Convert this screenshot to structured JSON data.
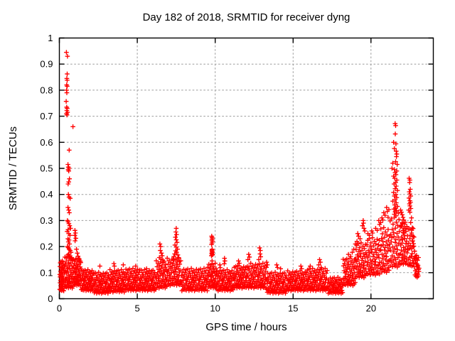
{
  "chart_data": {
    "type": "scatter",
    "title": "Day 182 of 2018, SRMTID for receiver dyng",
    "xlabel": "GPS time / hours",
    "ylabel": "SRMTID / TECUs",
    "xlim": [
      0,
      24
    ],
    "ylim": [
      0,
      1
    ],
    "x_ticks": [
      0,
      5,
      10,
      15,
      20
    ],
    "x_tick_labels": [
      "0",
      "5",
      "10",
      "15",
      "20"
    ],
    "y_ticks": [
      0,
      0.1,
      0.2,
      0.3,
      0.4,
      0.5,
      0.6,
      0.7,
      0.8,
      0.9,
      1
    ],
    "y_tick_labels": [
      "0",
      "0.1",
      "0.2",
      "0.3",
      "0.4",
      "0.5",
      "0.6",
      "0.7",
      "0.8",
      "0.9",
      "1"
    ],
    "grid": true,
    "legend": "none",
    "marker": "plus",
    "marker_color": "#ff0000",
    "grid_color": "#9c9c9c",
    "border_color": "#000000",
    "background": "#ffffff",
    "noise": [
      0.62,
      0.11,
      0.83,
      0.37,
      0.55,
      0.92,
      0.08,
      0.44,
      0.71,
      0.26,
      0.59,
      0.95,
      0.18,
      0.66,
      0.33,
      0.79,
      0.04,
      0.5,
      0.87,
      0.22,
      0.41,
      0.74,
      0.13,
      0.68,
      0.3,
      0.97,
      0.47,
      0.07,
      0.58,
      0.81,
      0.25,
      0.63,
      0.16,
      0.9,
      0.38,
      0.52,
      0.73,
      0.02,
      0.45,
      0.85,
      0.29,
      0.67,
      0.12,
      0.56,
      0.94,
      0.35,
      0.76,
      0.2
    ],
    "baseline_segments_format": "[x_start, x_end, count, y_min, y_max]",
    "baseline_segments": [
      [
        0.02,
        0.3,
        40,
        0.03,
        0.15
      ],
      [
        0.3,
        0.9,
        52,
        0.04,
        0.17
      ],
      [
        0.9,
        1.4,
        46,
        0.05,
        0.16
      ],
      [
        1.4,
        2.2,
        58,
        0.03,
        0.115
      ],
      [
        2.2,
        3.2,
        66,
        0.02,
        0.105
      ],
      [
        3.2,
        4.2,
        66,
        0.025,
        0.115
      ],
      [
        4.2,
        5.2,
        64,
        0.03,
        0.12
      ],
      [
        5.2,
        6.2,
        64,
        0.03,
        0.115
      ],
      [
        6.2,
        6.9,
        48,
        0.04,
        0.15
      ],
      [
        6.9,
        7.8,
        58,
        0.05,
        0.16
      ],
      [
        7.8,
        9.5,
        100,
        0.03,
        0.12
      ],
      [
        9.5,
        10.1,
        42,
        0.04,
        0.14
      ],
      [
        10.1,
        11.2,
        68,
        0.03,
        0.115
      ],
      [
        11.2,
        12.1,
        58,
        0.04,
        0.13
      ],
      [
        12.1,
        13.3,
        74,
        0.04,
        0.14
      ],
      [
        13.3,
        14.6,
        78,
        0.02,
        0.105
      ],
      [
        14.6,
        15.8,
        72,
        0.03,
        0.11
      ],
      [
        15.8,
        17.2,
        84,
        0.03,
        0.12
      ],
      [
        17.2,
        18.2,
        58,
        0.02,
        0.085
      ],
      [
        18.2,
        19.0,
        52,
        0.05,
        0.16
      ],
      [
        19.0,
        19.7,
        48,
        0.08,
        0.22
      ],
      [
        19.7,
        20.6,
        58,
        0.09,
        0.24
      ],
      [
        20.6,
        21.2,
        42,
        0.1,
        0.28
      ],
      [
        21.2,
        21.9,
        48,
        0.12,
        0.32
      ],
      [
        21.9,
        22.4,
        36,
        0.13,
        0.3
      ],
      [
        22.4,
        22.8,
        26,
        0.12,
        0.28
      ],
      [
        22.8,
        23.1,
        18,
        0.08,
        0.17
      ]
    ],
    "points": [
      [
        0.45,
        0.945
      ],
      [
        0.52,
        0.93
      ],
      [
        0.5,
        0.862
      ],
      [
        0.48,
        0.845
      ],
      [
        0.5,
        0.838
      ],
      [
        0.47,
        0.82
      ],
      [
        0.5,
        0.815
      ],
      [
        0.46,
        0.8
      ],
      [
        0.48,
        0.79
      ],
      [
        0.44,
        0.757
      ],
      [
        0.47,
        0.735
      ],
      [
        0.5,
        0.73
      ],
      [
        0.48,
        0.722
      ],
      [
        0.52,
        0.715
      ],
      [
        0.46,
        0.71
      ],
      [
        0.49,
        0.705
      ],
      [
        0.87,
        0.66
      ],
      [
        0.63,
        0.57
      ],
      [
        0.55,
        0.515
      ],
      [
        0.58,
        0.505
      ],
      [
        0.62,
        0.5
      ],
      [
        0.57,
        0.495
      ],
      [
        0.6,
        0.49
      ],
      [
        0.65,
        0.46
      ],
      [
        0.6,
        0.448
      ],
      [
        0.56,
        0.44
      ],
      [
        0.58,
        0.4
      ],
      [
        0.62,
        0.39
      ],
      [
        0.7,
        0.385
      ],
      [
        0.55,
        0.35
      ],
      [
        0.6,
        0.34
      ],
      [
        0.64,
        0.33
      ],
      [
        0.52,
        0.3
      ],
      [
        0.56,
        0.295
      ],
      [
        0.61,
        0.288
      ],
      [
        0.66,
        0.28
      ],
      [
        0.72,
        0.27
      ],
      [
        0.56,
        0.265
      ],
      [
        0.5,
        0.258
      ],
      [
        0.6,
        0.25
      ],
      [
        0.68,
        0.243
      ],
      [
        0.55,
        0.23
      ],
      [
        0.62,
        0.225
      ],
      [
        0.58,
        0.218
      ],
      [
        0.65,
        0.21
      ],
      [
        0.52,
        0.2
      ],
      [
        0.57,
        0.196
      ],
      [
        0.63,
        0.19
      ],
      [
        0.7,
        0.185
      ],
      [
        0.75,
        0.178
      ],
      [
        0.6,
        0.172
      ],
      [
        0.55,
        0.168
      ],
      [
        0.67,
        0.163
      ],
      [
        0.73,
        0.158
      ],
      [
        0.8,
        0.152
      ],
      [
        0.85,
        0.148
      ],
      [
        1.0,
        0.262
      ],
      [
        1.03,
        0.252
      ],
      [
        0.99,
        0.243
      ],
      [
        1.06,
        0.232
      ],
      [
        1.01,
        0.222
      ],
      [
        1.1,
        0.19
      ],
      [
        1.15,
        0.175
      ],
      [
        1.2,
        0.163
      ],
      [
        1.28,
        0.152
      ],
      [
        1.35,
        0.143
      ],
      [
        2.6,
        0.125
      ],
      [
        3.5,
        0.135
      ],
      [
        3.53,
        0.125
      ],
      [
        4.1,
        0.13
      ],
      [
        4.9,
        0.125
      ],
      [
        5.6,
        0.115
      ],
      [
        16.1,
        0.125
      ],
      [
        6.45,
        0.21
      ],
      [
        6.5,
        0.2
      ],
      [
        6.48,
        0.185
      ],
      [
        6.55,
        0.175
      ],
      [
        6.6,
        0.165
      ],
      [
        6.42,
        0.158
      ],
      [
        6.52,
        0.152
      ],
      [
        6.65,
        0.148
      ],
      [
        7.5,
        0.27
      ],
      [
        7.48,
        0.256
      ],
      [
        7.52,
        0.246
      ],
      [
        7.45,
        0.236
      ],
      [
        7.5,
        0.226
      ],
      [
        7.55,
        0.216
      ],
      [
        7.42,
        0.206
      ],
      [
        7.5,
        0.198
      ],
      [
        7.58,
        0.19
      ],
      [
        7.46,
        0.184
      ],
      [
        7.52,
        0.178
      ],
      [
        7.4,
        0.172
      ],
      [
        7.6,
        0.168
      ],
      [
        7.35,
        0.162
      ],
      [
        7.65,
        0.158
      ],
      [
        7.3,
        0.152
      ],
      [
        7.55,
        0.148
      ],
      [
        7.7,
        0.143
      ],
      [
        9.78,
        0.24
      ],
      [
        9.8,
        0.235
      ],
      [
        9.82,
        0.23
      ],
      [
        9.79,
        0.225
      ],
      [
        9.83,
        0.22
      ],
      [
        9.8,
        0.214
      ],
      [
        9.77,
        0.208
      ],
      [
        9.81,
        0.19
      ],
      [
        9.79,
        0.186
      ],
      [
        9.8,
        0.182
      ],
      [
        9.82,
        0.178
      ],
      [
        9.78,
        0.174
      ],
      [
        9.81,
        0.171
      ],
      [
        9.83,
        0.168
      ],
      [
        9.76,
        0.165
      ],
      [
        9.8,
        0.145
      ],
      [
        10.3,
        0.13
      ],
      [
        10.33,
        0.12
      ],
      [
        10.6,
        0.155
      ],
      [
        10.62,
        0.145
      ],
      [
        10.58,
        0.134
      ],
      [
        11.5,
        0.145
      ],
      [
        11.55,
        0.136
      ],
      [
        11.45,
        0.127
      ],
      [
        12.15,
        0.17
      ],
      [
        12.2,
        0.16
      ],
      [
        12.1,
        0.15
      ],
      [
        12.85,
        0.195
      ],
      [
        12.9,
        0.185
      ],
      [
        12.88,
        0.172
      ],
      [
        12.92,
        0.161
      ],
      [
        12.8,
        0.15
      ],
      [
        13.3,
        0.14
      ],
      [
        13.35,
        0.13
      ],
      [
        13.95,
        0.13
      ],
      [
        14.0,
        0.12
      ],
      [
        14.2,
        0.115
      ],
      [
        15.5,
        0.125
      ],
      [
        15.55,
        0.115
      ],
      [
        16.7,
        0.15
      ],
      [
        16.75,
        0.14
      ],
      [
        16.65,
        0.13
      ],
      [
        16.8,
        0.12
      ],
      [
        18.55,
        0.17
      ],
      [
        18.7,
        0.162
      ],
      [
        18.8,
        0.178
      ],
      [
        18.9,
        0.19
      ],
      [
        19.0,
        0.21
      ],
      [
        19.1,
        0.22
      ],
      [
        19.15,
        0.25
      ],
      [
        19.2,
        0.24
      ],
      [
        19.3,
        0.23
      ],
      [
        19.45,
        0.28
      ],
      [
        19.5,
        0.3
      ],
      [
        19.52,
        0.29
      ],
      [
        19.55,
        0.27
      ],
      [
        19.6,
        0.26
      ],
      [
        19.8,
        0.25
      ],
      [
        19.9,
        0.243
      ],
      [
        20.05,
        0.26
      ],
      [
        20.1,
        0.252
      ],
      [
        20.3,
        0.27
      ],
      [
        20.4,
        0.262
      ],
      [
        20.5,
        0.3
      ],
      [
        20.55,
        0.285
      ],
      [
        20.62,
        0.292
      ],
      [
        20.7,
        0.31
      ],
      [
        20.76,
        0.302
      ],
      [
        20.82,
        0.33
      ],
      [
        20.9,
        0.32
      ],
      [
        21.0,
        0.35
      ],
      [
        21.05,
        0.335
      ],
      [
        21.1,
        0.312
      ],
      [
        21.15,
        0.342
      ],
      [
        21.55,
        0.672
      ],
      [
        21.58,
        0.664
      ],
      [
        21.56,
        0.632
      ],
      [
        21.45,
        0.6
      ],
      [
        21.6,
        0.594
      ],
      [
        21.5,
        0.576
      ],
      [
        21.62,
        0.566
      ],
      [
        21.65,
        0.555
      ],
      [
        21.63,
        0.545
      ],
      [
        21.4,
        0.52
      ],
      [
        21.58,
        0.526
      ],
      [
        21.68,
        0.515
      ],
      [
        21.35,
        0.5
      ],
      [
        21.5,
        0.496
      ],
      [
        21.65,
        0.49
      ],
      [
        21.55,
        0.484
      ],
      [
        21.6,
        0.476
      ],
      [
        21.45,
        0.47
      ],
      [
        21.52,
        0.462
      ],
      [
        21.66,
        0.455
      ],
      [
        21.58,
        0.446
      ],
      [
        21.48,
        0.44
      ],
      [
        21.62,
        0.432
      ],
      [
        21.55,
        0.422
      ],
      [
        21.7,
        0.415
      ],
      [
        21.45,
        0.408
      ],
      [
        21.6,
        0.4
      ],
      [
        21.5,
        0.394
      ],
      [
        21.65,
        0.388
      ],
      [
        21.55,
        0.38
      ],
      [
        21.4,
        0.374
      ],
      [
        21.62,
        0.368
      ],
      [
        21.52,
        0.36
      ],
      [
        21.7,
        0.354
      ],
      [
        21.58,
        0.348
      ],
      [
        21.47,
        0.344
      ],
      [
        21.64,
        0.338
      ],
      [
        21.55,
        0.333
      ],
      [
        21.75,
        0.328
      ],
      [
        21.5,
        0.324
      ],
      [
        21.6,
        0.318
      ],
      [
        21.9,
        0.34
      ],
      [
        21.95,
        0.332
      ],
      [
        22.0,
        0.322
      ],
      [
        22.05,
        0.312
      ],
      [
        22.1,
        0.302
      ],
      [
        22.0,
        0.292
      ],
      [
        22.15,
        0.286
      ],
      [
        21.95,
        0.278
      ],
      [
        22.2,
        0.27
      ],
      [
        22.05,
        0.262
      ],
      [
        22.1,
        0.252
      ],
      [
        22.45,
        0.462
      ],
      [
        22.5,
        0.455
      ],
      [
        22.48,
        0.446
      ],
      [
        22.52,
        0.42
      ],
      [
        22.46,
        0.41
      ],
      [
        22.5,
        0.402
      ],
      [
        22.55,
        0.394
      ],
      [
        22.44,
        0.386
      ],
      [
        22.5,
        0.376
      ],
      [
        22.53,
        0.37
      ],
      [
        22.47,
        0.364
      ],
      [
        22.5,
        0.356
      ],
      [
        22.56,
        0.346
      ],
      [
        22.42,
        0.34
      ],
      [
        22.5,
        0.332
      ],
      [
        22.6,
        0.31
      ],
      [
        22.55,
        0.292
      ],
      [
        22.65,
        0.272
      ],
      [
        22.6,
        0.252
      ],
      [
        22.7,
        0.24
      ],
      [
        22.68,
        0.222
      ],
      [
        22.75,
        0.202
      ],
      [
        22.8,
        0.182
      ],
      [
        22.85,
        0.163
      ],
      [
        22.9,
        0.152
      ],
      [
        22.95,
        0.133
      ],
      [
        23.0,
        0.122
      ],
      [
        23.05,
        0.112
      ]
    ]
  }
}
